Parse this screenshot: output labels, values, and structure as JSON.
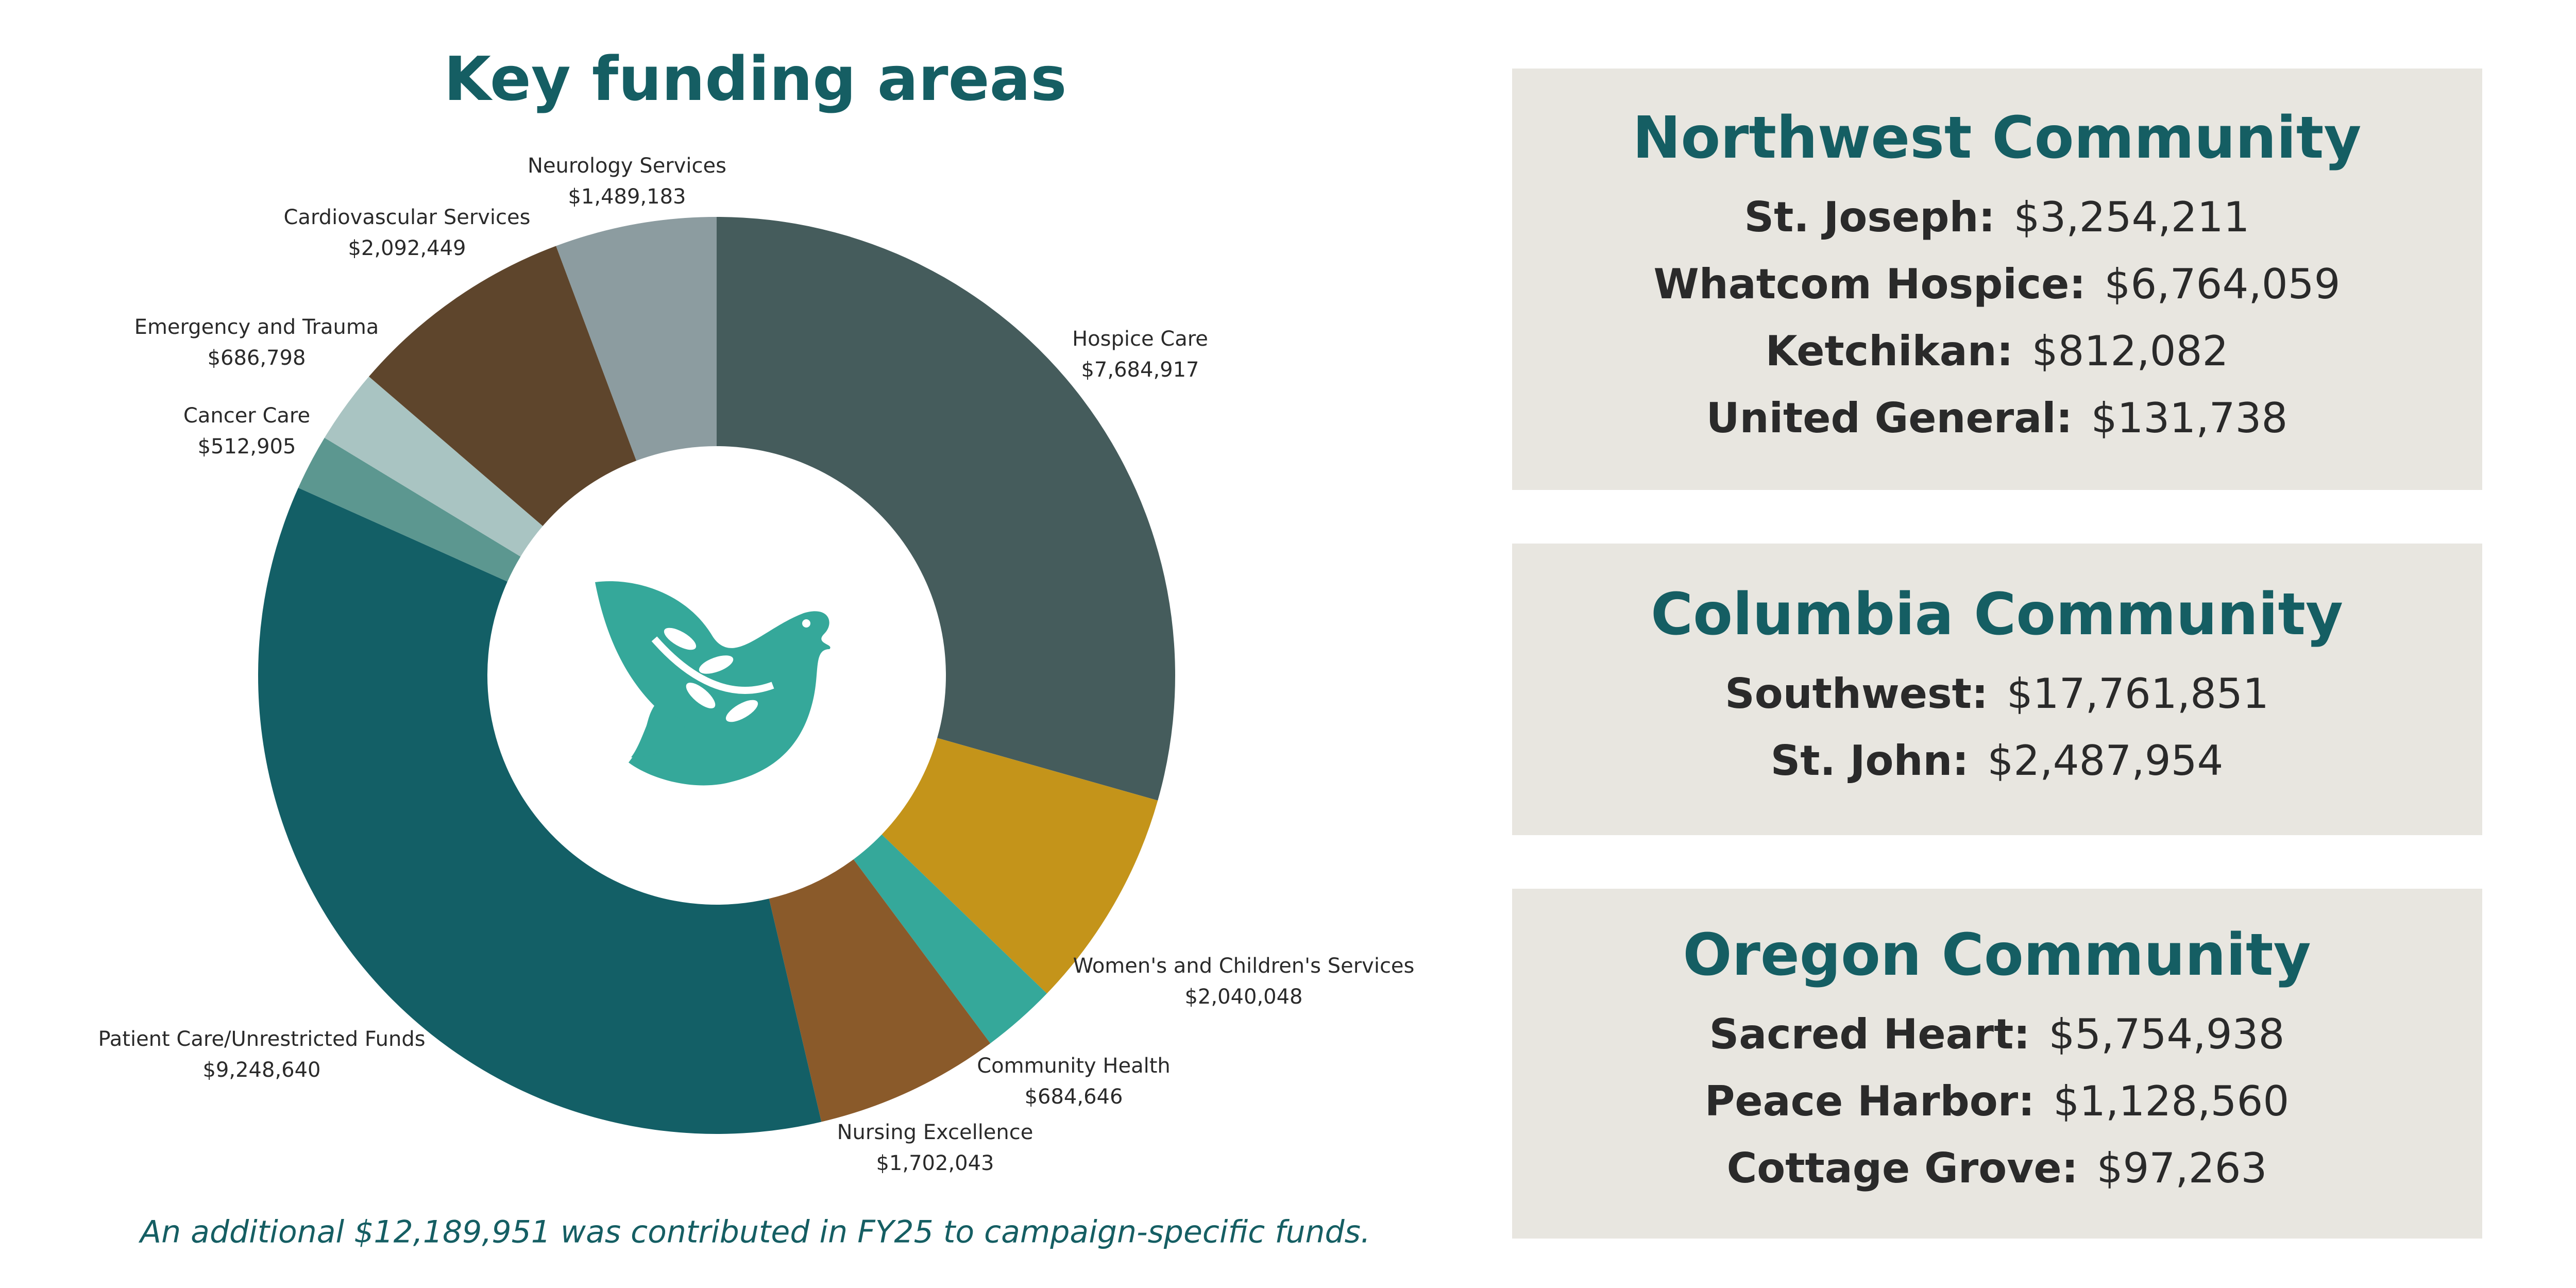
{
  "chart_data": {
    "type": "donut",
    "title": "Key funding areas",
    "categories": [
      "Hospice Care",
      "Women's and Children's Services",
      "Community Health",
      "Nursing Excellence",
      "Patient Care/Unrestricted Funds",
      "Cancer Care",
      "Emergency and Trauma",
      "Cardiovascular Services",
      "Neurology Services"
    ],
    "values": [
      7684917,
      2040048,
      684646,
      1702043,
      9248640,
      512905,
      686798,
      2092449,
      1489183
    ],
    "value_labels": [
      "$7,684,917",
      "$2,040,048",
      "$684,646",
      "$1,702,043",
      "$9,248,640",
      "$512,905",
      "$686,798",
      "$2,092,449",
      "$1,489,183"
    ],
    "colors": [
      "#455c5c",
      "#c4941a",
      "#35a89a",
      "#8a5a2a",
      "#135f66",
      "#5c9790",
      "#a9c4c2",
      "#5e452c",
      "#8c9ca0"
    ],
    "annotation": "An additional $12,189,951 was contributed in FY25 to campaign-specific funds."
  },
  "panels": [
    {
      "title": "Northwest Community",
      "rows": [
        {
          "label": "St. Joseph:",
          "value": "$3,254,211"
        },
        {
          "label": "Whatcom Hospice:",
          "value": "$6,764,059"
        },
        {
          "label": "Ketchikan:",
          "value": "$812,082"
        },
        {
          "label": "United General:",
          "value": "$131,738"
        }
      ]
    },
    {
      "title": "Columbia Community",
      "rows": [
        {
          "label": "Southwest:",
          "value": "$17,761,851"
        },
        {
          "label": "St. John:",
          "value": "$2,487,954"
        }
      ]
    },
    {
      "title": "Oregon Community",
      "rows": [
        {
          "label": "Sacred Heart:",
          "value": "$5,754,938"
        },
        {
          "label": "Peace Harbor:",
          "value": "$1,128,560"
        },
        {
          "label": "Cottage Grove:",
          "value": "$97,263"
        }
      ]
    }
  ]
}
